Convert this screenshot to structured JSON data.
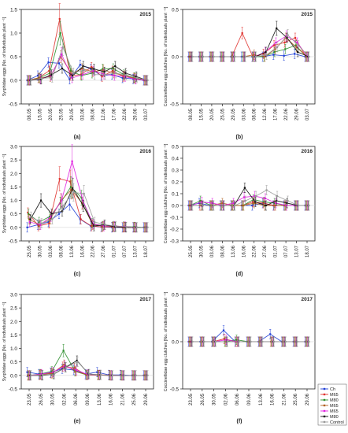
{
  "figure": {
    "panel_labels": [
      "(a)",
      "(b)",
      "(c)",
      "(d)",
      "(e)",
      "(f)"
    ],
    "legend": [
      "Ch",
      "M65",
      "M80",
      "M65",
      "M65",
      "M80",
      "Control"
    ]
  },
  "colors": {
    "Ch": "#1f3fd6",
    "M65": "#e0322e",
    "M80": "#2e8f2e",
    "M65b": "#b06020",
    "M65c": "#e020e0",
    "M80b": "#111111",
    "Control": "#999999"
  },
  "chart_data": [
    {
      "type": "line",
      "panel": "(a)",
      "year_label": "2015",
      "ylabel": "Syrphidae eggs [No. of individuals plant ⁻¹]",
      "ylim": [
        -0.5,
        1.5
      ],
      "yticks": [
        -0.5,
        0.0,
        0.5,
        1.0,
        1.5
      ],
      "x": [
        "08.05",
        "15.05",
        "20.05",
        "25.05",
        "29.05",
        "03.06",
        "08.06",
        "12.06",
        "17.06",
        "22.06",
        "29.06",
        "03.07"
      ],
      "series": [
        {
          "name": "Ch",
          "values": [
            0.0,
            0.1,
            0.38,
            0.36,
            0.02,
            0.33,
            0.24,
            0.1,
            0.12,
            0.05,
            0.03,
            0.0
          ]
        },
        {
          "name": "M65",
          "values": [
            0.0,
            0.05,
            0.2,
            1.3,
            0.1,
            0.12,
            0.28,
            0.08,
            0.2,
            0.08,
            0.05,
            0.0
          ]
        },
        {
          "name": "M80",
          "values": [
            0.0,
            0.05,
            0.15,
            1.0,
            0.2,
            0.1,
            0.15,
            0.24,
            0.25,
            0.12,
            0.06,
            0.0
          ]
        },
        {
          "name": "M65",
          "values": [
            0.0,
            0.05,
            0.08,
            0.5,
            0.14,
            0.25,
            0.18,
            0.22,
            0.15,
            0.1,
            0.04,
            0.0
          ]
        },
        {
          "name": "M65",
          "values": [
            0.0,
            0.03,
            0.1,
            0.55,
            0.05,
            0.12,
            0.2,
            0.13,
            0.1,
            0.08,
            0.02,
            0.0
          ]
        },
        {
          "name": "M80",
          "values": [
            0.0,
            0.02,
            0.12,
            0.25,
            0.1,
            0.3,
            0.24,
            0.18,
            0.3,
            0.15,
            0.08,
            0.0
          ]
        },
        {
          "name": "Control",
          "values": [
            0.0,
            0.04,
            0.06,
            0.7,
            0.16,
            0.22,
            0.12,
            0.12,
            0.15,
            0.11,
            0.05,
            0.0
          ]
        }
      ]
    },
    {
      "type": "line",
      "panel": "(b)",
      "year_label": "2015",
      "ylabel": "Coccinellidae egg clutches [No. of individuals plant ⁻¹]",
      "ylim": [
        -0.5,
        0.5
      ],
      "yticks": [
        -0.5,
        0.0,
        0.5
      ],
      "x": [
        "08.05",
        "15.05",
        "20.05",
        "25.05",
        "29.05",
        "03.06",
        "08.06",
        "12.06",
        "17.06",
        "22.06",
        "29.06",
        "03.07"
      ],
      "series": [
        {
          "name": "Ch",
          "values": [
            0,
            0,
            0,
            0,
            0,
            0,
            0,
            0,
            0.02,
            0.01,
            0.03,
            0
          ]
        },
        {
          "name": "M65",
          "values": [
            0,
            0,
            0,
            0,
            0,
            0.25,
            0,
            0.03,
            0.12,
            0.15,
            0.2,
            0
          ]
        },
        {
          "name": "M80",
          "values": [
            0,
            0,
            0,
            0,
            0,
            0,
            0,
            0,
            0.05,
            0.08,
            0.12,
            0
          ]
        },
        {
          "name": "M65",
          "values": [
            0,
            0,
            0,
            0,
            0,
            0,
            0.02,
            0,
            0.08,
            0.2,
            0.1,
            0
          ]
        },
        {
          "name": "M65",
          "values": [
            0,
            0,
            0,
            0,
            0,
            0,
            0,
            0.05,
            0.15,
            0.22,
            0.15,
            0
          ]
        },
        {
          "name": "M80",
          "values": [
            0,
            0,
            0,
            0,
            0,
            0,
            0,
            0.05,
            0.3,
            0.2,
            0.05,
            0
          ]
        },
        {
          "name": "Control",
          "values": [
            0,
            0,
            0,
            0,
            0,
            0,
            0,
            0.02,
            0.1,
            0.23,
            0.12,
            0
          ]
        }
      ]
    },
    {
      "type": "line",
      "panel": "(c)",
      "year_label": "2016",
      "ylabel": "Syrphidae eggs [No. of individuals plant ⁻¹]",
      "ylim": [
        -0.5,
        3.0
      ],
      "yticks": [
        -0.5,
        0.0,
        0.5,
        1.0,
        1.5,
        2.0,
        2.5,
        3.0
      ],
      "x": [
        "25.05",
        "30.05",
        "03.06",
        "08.06",
        "13.06",
        "16.06",
        "22.06",
        "27.06",
        "01.07",
        "07.07",
        "13.07",
        "18.07"
      ],
      "series": [
        {
          "name": "Ch",
          "values": [
            0.0,
            0.1,
            0.2,
            0.5,
            0.85,
            0.3,
            0.05,
            0.02,
            0.0,
            0.0,
            0.0,
            0.0
          ]
        },
        {
          "name": "M65",
          "values": [
            0.55,
            0.05,
            0.15,
            1.8,
            1.7,
            0.3,
            0.05,
            0.02,
            0.02,
            0.0,
            0.0,
            0.0
          ]
        },
        {
          "name": "M80",
          "values": [
            0.5,
            0.2,
            0.4,
            0.9,
            1.5,
            1.1,
            0.15,
            0.05,
            0.05,
            0.03,
            0.02,
            0.0
          ]
        },
        {
          "name": "M65",
          "values": [
            0.3,
            0.1,
            0.3,
            1.0,
            1.4,
            0.9,
            0.1,
            0.05,
            0.02,
            0.02,
            0.0,
            0.0
          ]
        },
        {
          "name": "M65",
          "values": [
            0.2,
            0.1,
            0.4,
            1.0,
            2.45,
            1.0,
            0.12,
            0.05,
            0.05,
            0.03,
            0.0,
            0.0
          ]
        },
        {
          "name": "M80",
          "values": [
            0.3,
            1.0,
            0.5,
            0.6,
            1.45,
            0.8,
            0.05,
            0.1,
            0.02,
            0.0,
            0.0,
            0.0
          ]
        },
        {
          "name": "Control",
          "values": [
            0.4,
            0.15,
            0.3,
            0.8,
            1.3,
            1.25,
            0.2,
            0.1,
            0.05,
            0.02,
            0.0,
            0.0
          ]
        }
      ]
    },
    {
      "type": "line",
      "panel": "(d)",
      "year_label": "2016",
      "ylabel": "Coccinellidae egg clutches [No. of individuals plant ⁻¹]",
      "ylim": [
        -0.3,
        0.5
      ],
      "yticks": [
        -0.3,
        -0.2,
        -0.1,
        0.0,
        0.1,
        0.2,
        0.3,
        0.4,
        0.5
      ],
      "x": [
        "25.05",
        "30.05",
        "03.06",
        "08.06",
        "13.06",
        "16.06",
        "22.06",
        "27.06",
        "01.07",
        "07.07",
        "13.07",
        "18.07"
      ],
      "series": [
        {
          "name": "Ch",
          "values": [
            0,
            0.02,
            0,
            0,
            0,
            0,
            0,
            0.02,
            0,
            0,
            0,
            0
          ]
        },
        {
          "name": "M65",
          "values": [
            0,
            0,
            0,
            0,
            0,
            0,
            0.03,
            0.02,
            0,
            0,
            0,
            0
          ]
        },
        {
          "name": "M80",
          "values": [
            0,
            0.04,
            0,
            0,
            0,
            0,
            0.05,
            0.03,
            0.02,
            0,
            0,
            0
          ]
        },
        {
          "name": "M65",
          "values": [
            0,
            0,
            0,
            0.02,
            0,
            0,
            0.02,
            0,
            0,
            0,
            0,
            0
          ]
        },
        {
          "name": "M65",
          "values": [
            0,
            0.03,
            0.02,
            0,
            0.02,
            0.07,
            0.08,
            0.06,
            0.02,
            0,
            0,
            0
          ]
        },
        {
          "name": "M80",
          "values": [
            0,
            0,
            0,
            0,
            0,
            0.15,
            0.03,
            0.0,
            0.04,
            0.02,
            0,
            0
          ]
        },
        {
          "name": "Control",
          "values": [
            0,
            0,
            0,
            0,
            0,
            0.04,
            0.08,
            0.13,
            0.08,
            0.04,
            0,
            0
          ]
        }
      ]
    },
    {
      "type": "line",
      "panel": "(e)",
      "year_label": "2017",
      "ylabel": "Syrphidae eggs [No. of individuals plant ⁻¹]",
      "ylim": [
        -0.5,
        3.0
      ],
      "yticks": [
        -0.5,
        0.0,
        0.5,
        1.0,
        1.5,
        2.0,
        2.5,
        3.0
      ],
      "x": [
        "23.05",
        "26.05",
        "30.05",
        "02.06",
        "06.06",
        "09.06",
        "13.06",
        "16.06",
        "21.06",
        "25.06",
        "29.06"
      ],
      "series": [
        {
          "name": "Ch",
          "values": [
            0.12,
            0.05,
            0.1,
            0.25,
            0.2,
            0.05,
            0.12,
            0.02,
            0.02,
            0.0,
            0.0
          ]
        },
        {
          "name": "M65",
          "values": [
            0.0,
            0.02,
            0.08,
            0.32,
            0.28,
            0.02,
            0.02,
            0.01,
            0.0,
            0.0,
            0.0
          ]
        },
        {
          "name": "M80",
          "values": [
            0.0,
            0.05,
            0.15,
            0.92,
            0.15,
            0.02,
            0.02,
            0.0,
            0.0,
            0.0,
            0.0
          ]
        },
        {
          "name": "M65",
          "values": [
            0.0,
            0.03,
            0.08,
            0.4,
            0.15,
            0.02,
            0.01,
            0.0,
            0.0,
            0.0,
            0.0
          ]
        },
        {
          "name": "M65",
          "values": [
            0.0,
            0.05,
            0.12,
            0.35,
            0.2,
            0.03,
            0.02,
            0.0,
            0.0,
            0.0,
            0.0
          ]
        },
        {
          "name": "M80",
          "values": [
            0.0,
            0.0,
            0.05,
            0.3,
            0.55,
            0.05,
            0.02,
            0.0,
            0.0,
            0.0,
            0.0
          ]
        },
        {
          "name": "Control",
          "values": [
            0.0,
            0.02,
            0.05,
            0.3,
            0.5,
            0.05,
            0.02,
            0.0,
            0.0,
            0.0,
            0.0
          ]
        }
      ]
    },
    {
      "type": "line",
      "panel": "(f)",
      "year_label": "2017",
      "ylabel": "Coccinellidae egg clutches [No. of individuals plant ⁻¹]",
      "ylim": [
        -0.5,
        0.5
      ],
      "yticks": [
        -0.5,
        0.0,
        0.5
      ],
      "x": [
        "23.05",
        "26.05",
        "30.05",
        "02.06",
        "06.06",
        "09.06",
        "13.06",
        "16.06",
        "21.06",
        "25.06",
        "29.06"
      ],
      "series": [
        {
          "name": "Ch",
          "values": [
            0,
            0,
            0,
            0.12,
            0,
            0,
            0,
            0.08,
            0,
            0,
            0
          ]
        },
        {
          "name": "M65",
          "values": [
            0,
            0,
            0,
            0.03,
            0,
            0,
            0,
            0,
            0,
            0,
            0
          ]
        },
        {
          "name": "M80",
          "values": [
            0,
            0,
            0,
            0,
            0.02,
            0,
            0,
            0,
            0,
            0,
            0
          ]
        },
        {
          "name": "M65",
          "values": [
            0,
            0,
            0,
            0,
            0,
            0,
            0,
            0,
            0,
            0,
            0
          ]
        },
        {
          "name": "M65",
          "values": [
            0,
            0,
            0,
            0.02,
            0,
            0,
            0,
            0,
            0,
            0,
            0
          ]
        },
        {
          "name": "M80",
          "values": [
            0,
            0,
            0,
            0,
            0,
            0,
            0,
            0,
            0,
            0,
            0
          ]
        },
        {
          "name": "Control",
          "values": [
            0,
            0,
            0,
            0,
            0,
            0,
            0,
            0,
            0,
            0,
            0
          ]
        }
      ]
    }
  ]
}
